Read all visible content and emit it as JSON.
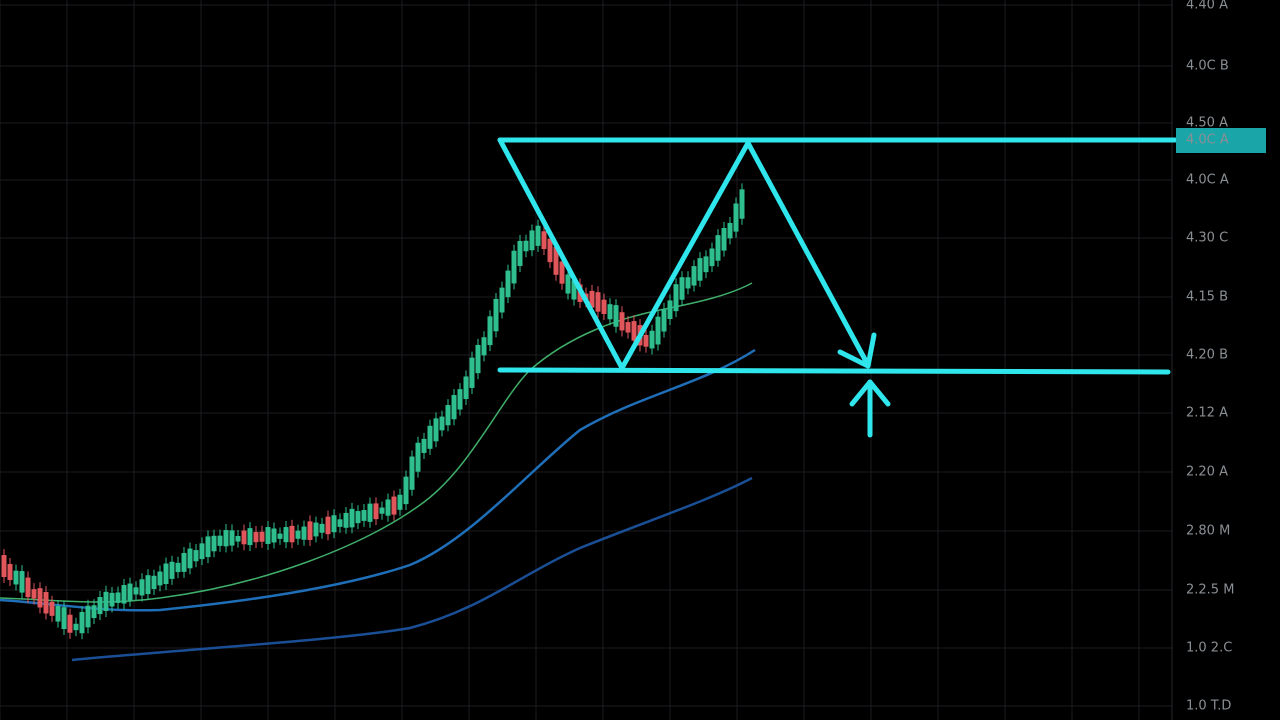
{
  "axis_labels": [
    "4.40 Å",
    "4.0C B",
    "4.50 A",
    "4.0C A",
    "4.0C A",
    "4.30 C",
    "4.15 B",
    "4.20 B",
    "2.12 A",
    "2.20 A",
    "2.80 M",
    "2.2.5 M",
    "1.0 2.C",
    "1.0 T.D"
  ]
}
